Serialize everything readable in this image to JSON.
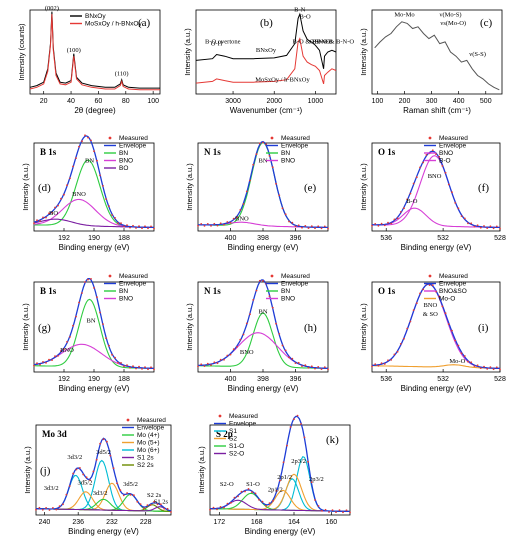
{
  "chart_data": [
    {
      "panel_label": "(a)",
      "type": "line",
      "xlabel": "2θ (degree)",
      "ylabel": "Intensity (counts)",
      "xticks": [
        "20",
        "40",
        "60",
        "80",
        "100"
      ],
      "xlim": [
        10,
        105
      ],
      "ylim": [
        0,
        1
      ],
      "legend": [
        "BNxOy",
        "MoSxOy / h-BNxOy"
      ],
      "legend_position": "top-right",
      "peak_labels": [
        {
          "text": "(002)",
          "x": 26,
          "y": 1.0
        },
        {
          "text": "(100)",
          "x": 42,
          "y": 0.5
        },
        {
          "text": "(110)",
          "x": 77,
          "y": 0.22
        }
      ],
      "series": [
        {
          "name": "BNxOy",
          "color": "#000000",
          "x": [
            10,
            15,
            20,
            23,
            25,
            26,
            27,
            29,
            32,
            36,
            40,
            42,
            44,
            48,
            55,
            65,
            72,
            76,
            77,
            78,
            82,
            90,
            100,
            105
          ],
          "y": [
            0.08,
            0.1,
            0.14,
            0.3,
            0.6,
            0.98,
            0.55,
            0.25,
            0.14,
            0.13,
            0.16,
            0.48,
            0.2,
            0.13,
            0.1,
            0.08,
            0.08,
            0.12,
            0.17,
            0.11,
            0.08,
            0.07,
            0.07,
            0.07
          ]
        },
        {
          "name": "MoSxOy / h-BNxOy",
          "color": "#e53935",
          "x": [
            10,
            15,
            20,
            23,
            25,
            26,
            27,
            29,
            32,
            36,
            40,
            42,
            44,
            48,
            55,
            65,
            72,
            76,
            77,
            78,
            82,
            90,
            100,
            105
          ],
          "y": [
            0.06,
            0.08,
            0.12,
            0.27,
            0.58,
            0.95,
            0.52,
            0.22,
            0.12,
            0.11,
            0.14,
            0.45,
            0.18,
            0.11,
            0.08,
            0.06,
            0.06,
            0.1,
            0.15,
            0.09,
            0.06,
            0.05,
            0.05,
            0.05
          ]
        }
      ]
    },
    {
      "panel_label": "(b)",
      "type": "line",
      "xlabel": "Wavenumber (cm⁻¹)",
      "ylabel": "Intensity (a.u.)",
      "xticks": [
        "3000",
        "2000",
        "1000"
      ],
      "xlim": [
        3900,
        500
      ],
      "ylim": [
        0,
        1
      ],
      "annotations": [
        {
          "text": "O-H",
          "x": 3400,
          "y": 0.58
        },
        {
          "text": "B-O overtone",
          "x": 3250,
          "y": 0.6
        },
        {
          "text": "BNxOy",
          "x": 2200,
          "y": 0.5
        },
        {
          "text": "MoSxOy / h-BNxOy",
          "x": 1800,
          "y": 0.15
        },
        {
          "text": "B-N",
          "x": 1380,
          "y": 0.98
        },
        {
          "text": "B-O",
          "x": 1250,
          "y": 0.9
        },
        {
          "text": "B-O & B-N-O",
          "x": 1100,
          "y": 0.6
        },
        {
          "text": "B-N-B",
          "x": 800,
          "y": 0.6
        },
        {
          "text": "O-B-O & B-N-O",
          "x": 600,
          "y": 0.6
        }
      ],
      "series": [
        {
          "name": "BNxOy",
          "color": "#000000",
          "x": [
            3900,
            3500,
            3400,
            3300,
            3200,
            3000,
            2500,
            2000,
            1700,
            1500,
            1420,
            1380,
            1300,
            1200,
            1100,
            1000,
            900,
            800,
            780,
            700,
            600,
            500
          ],
          "y": [
            0.4,
            0.42,
            0.47,
            0.46,
            0.45,
            0.42,
            0.42,
            0.43,
            0.46,
            0.6,
            0.9,
            0.95,
            0.75,
            0.65,
            0.62,
            0.58,
            0.52,
            0.3,
            0.45,
            0.5,
            0.52,
            0.5
          ]
        },
        {
          "name": "MoSxOy / h-BNxOy",
          "color": "#e53935",
          "x": [
            3900,
            3500,
            3400,
            3300,
            3200,
            3000,
            2500,
            2000,
            1700,
            1500,
            1420,
            1380,
            1300,
            1200,
            1100,
            1000,
            900,
            800,
            780,
            700,
            600,
            500
          ],
          "y": [
            0.13,
            0.15,
            0.18,
            0.17,
            0.16,
            0.14,
            0.14,
            0.15,
            0.17,
            0.3,
            0.62,
            0.66,
            0.45,
            0.38,
            0.35,
            0.33,
            0.28,
            0.12,
            0.22,
            0.26,
            0.3,
            0.28
          ]
        }
      ]
    },
    {
      "panel_label": "(c)",
      "type": "line",
      "xlabel": "Raman shift (cm⁻¹)",
      "ylabel": "Intensity (a.u.)",
      "xticks": [
        "100",
        "200",
        "300",
        "400",
        "500"
      ],
      "xlim": [
        80,
        560
      ],
      "ylim": [
        0,
        1
      ],
      "annotations": [
        {
          "text": "Mo-Mo",
          "x": 200,
          "y": 0.92
        },
        {
          "text": "ν(Mo-S)",
          "x": 370,
          "y": 0.92
        },
        {
          "text": "νs(Mo-O)",
          "x": 380,
          "y": 0.82
        },
        {
          "text": "ν(S-S)",
          "x": 470,
          "y": 0.45
        }
      ],
      "series": [
        {
          "name": "Raman",
          "color": "#555555",
          "x": [
            90,
            110,
            130,
            150,
            170,
            190,
            210,
            230,
            250,
            270,
            290,
            310,
            330,
            350,
            370,
            390,
            410,
            430,
            450,
            470,
            490,
            510,
            530,
            550
          ],
          "y": [
            0.55,
            0.62,
            0.68,
            0.72,
            0.8,
            0.86,
            0.84,
            0.78,
            0.8,
            0.72,
            0.66,
            0.7,
            0.6,
            0.62,
            0.5,
            0.45,
            0.38,
            0.4,
            0.3,
            0.22,
            0.18,
            0.12,
            0.08,
            0.05
          ]
        }
      ]
    },
    {
      "panel_label": "(d)",
      "title": "B 1s",
      "type": "line",
      "xlabel": "Binding energy (eV)",
      "ylabel": "Intensity (a.u.)",
      "xticks": [
        "192",
        "190",
        "188"
      ],
      "xlim": [
        194,
        186
      ],
      "ylim": [
        0,
        1
      ],
      "legend": [
        "Measured",
        "Envelope",
        "BN",
        "BNO",
        "BO"
      ],
      "components": [
        {
          "name": "BN",
          "center": 190.4,
          "height": 0.75,
          "width": 0.8
        },
        {
          "name": "BNO",
          "center": 191.0,
          "height": 0.3,
          "width": 1.1
        },
        {
          "name": "BO",
          "center": 192.5,
          "height": 0.07,
          "width": 1.0
        }
      ],
      "peak_labels": [
        {
          "text": "BN",
          "x": 190.3,
          "y": 0.78
        },
        {
          "text": "BNO",
          "x": 191.0,
          "y": 0.4
        },
        {
          "text": "BO",
          "x": 192.7,
          "y": 0.18
        }
      ]
    },
    {
      "panel_label": "(e)",
      "title": "N 1s",
      "type": "line",
      "xlabel": "Binding energy (eV)",
      "ylabel": "Intensity (a.u.)",
      "xticks": [
        "400",
        "398",
        "396"
      ],
      "xlim": [
        402,
        394
      ],
      "ylim": [
        0,
        1
      ],
      "legend": [
        "Measured",
        "Envelope",
        "BN",
        "BNO"
      ],
      "components": [
        {
          "name": "BN",
          "center": 398.0,
          "height": 0.95,
          "width": 0.7
        },
        {
          "name": "BNO",
          "center": 399.3,
          "height": 0.04,
          "width": 0.8
        }
      ],
      "peak_labels": [
        {
          "text": "BN",
          "x": 398.0,
          "y": 0.78
        },
        {
          "text": "BNO",
          "x": 399.3,
          "y": 0.12
        }
      ]
    },
    {
      "panel_label": "(f)",
      "title": "O 1s",
      "type": "line",
      "xlabel": "Binding energy (eV)",
      "ylabel": "Intensity (a.u.)",
      "xticks": [
        "536",
        "532",
        "528"
      ],
      "xlim": [
        537,
        528
      ],
      "ylim": [
        0,
        1
      ],
      "legend": [
        "Measured",
        "Envelope",
        "BNO",
        "B-O"
      ],
      "components": [
        {
          "name": "BNO",
          "center": 532.6,
          "height": 0.8,
          "width": 1.0
        },
        {
          "name": "B-O",
          "center": 534.0,
          "height": 0.2,
          "width": 0.8
        }
      ],
      "peak_labels": [
        {
          "text": "BNO",
          "x": 532.6,
          "y": 0.6
        },
        {
          "text": "B-O",
          "x": 534.2,
          "y": 0.32
        }
      ]
    },
    {
      "panel_label": "(g)",
      "title": "B 1s",
      "type": "line",
      "xlabel": "Binding energy (eV)",
      "ylabel": "Intensity (a.u.)",
      "xticks": [
        "192",
        "190",
        "188"
      ],
      "xlim": [
        194,
        186
      ],
      "ylim": [
        0,
        1
      ],
      "legend": [
        "Measured",
        "Envelope",
        "BN",
        "BNO"
      ],
      "components": [
        {
          "name": "BN",
          "center": 190.3,
          "height": 0.75,
          "width": 0.7
        },
        {
          "name": "BNO",
          "center": 190.8,
          "height": 0.25,
          "width": 1.3
        }
      ],
      "peak_labels": [
        {
          "text": "BN",
          "x": 190.2,
          "y": 0.55
        },
        {
          "text": "BNO",
          "x": 191.8,
          "y": 0.22
        }
      ]
    },
    {
      "panel_label": "(h)",
      "title": "N 1s",
      "type": "line",
      "xlabel": "Binding energy (eV)",
      "ylabel": "Intensity (a.u.)",
      "xticks": [
        "400",
        "398",
        "396"
      ],
      "xlim": [
        402,
        394
      ],
      "ylim": [
        0,
        1
      ],
      "legend": [
        "Measured",
        "Envelope",
        "BN",
        "BNO"
      ],
      "components": [
        {
          "name": "BN",
          "center": 398.0,
          "height": 0.6,
          "width": 0.6
        },
        {
          "name": "BNO",
          "center": 398.3,
          "height": 0.38,
          "width": 1.2
        }
      ],
      "peak_labels": [
        {
          "text": "BN",
          "x": 398.0,
          "y": 0.65
        },
        {
          "text": "BNO",
          "x": 399.0,
          "y": 0.2
        }
      ]
    },
    {
      "panel_label": "(i)",
      "title": "O 1s",
      "type": "line",
      "xlabel": "Binding energy (eV)",
      "ylabel": "Intensity (a.u.)",
      "xticks": [
        "536",
        "532",
        "528"
      ],
      "xlim": [
        537,
        528
      ],
      "ylim": [
        0,
        1
      ],
      "legend": [
        "Measured",
        "Envelope",
        "BNO&SO",
        "Mo-O"
      ],
      "components": [
        {
          "name": "BNO&SO",
          "center": 533.0,
          "height": 0.92,
          "width": 1.2
        },
        {
          "name": "Mo-O",
          "center": 531.2,
          "height": 0.03,
          "width": 0.7
        }
      ],
      "peak_labels": [
        {
          "text": "BNO",
          "x": 532.9,
          "y": 0.72
        },
        {
          "text": "& SO",
          "x": 532.9,
          "y": 0.62
        },
        {
          "text": "Mo-O",
          "x": 531.0,
          "y": 0.1
        }
      ]
    },
    {
      "panel_label": "(j)",
      "title": "Mo 3d",
      "type": "line",
      "xlabel": "Binding energy (eV)",
      "ylabel": "Intensity (a.u.)",
      "xticks": [
        "240",
        "236",
        "232",
        "228"
      ],
      "xlim": [
        241,
        225
      ],
      "ylim": [
        0,
        1
      ],
      "legend": [
        "Measured",
        "Envelope",
        "Mo (4+)",
        "Mo (5+)",
        "Mo (6+)",
        "S1 2s",
        "S2 2s"
      ],
      "components": [
        {
          "name": "Mo (6+)",
          "center": 233.2,
          "height": 0.55,
          "width": 0.8
        },
        {
          "name": "Mo (6+)",
          "center": 236.3,
          "height": 0.38,
          "width": 0.8
        },
        {
          "name": "Mo (5+)",
          "center": 232.0,
          "height": 0.3,
          "width": 0.8
        },
        {
          "name": "Mo (5+)",
          "center": 235.1,
          "height": 0.2,
          "width": 0.8
        },
        {
          "name": "Mo (4+)",
          "center": 229.8,
          "height": 0.18,
          "width": 0.8
        },
        {
          "name": "Mo (4+)",
          "center": 233.0,
          "height": 0.12,
          "width": 0.8
        },
        {
          "name": "S2 2s",
          "center": 227.2,
          "height": 0.07,
          "width": 0.6
        },
        {
          "name": "S1 2s",
          "center": 226.3,
          "height": 0.05,
          "width": 0.6
        }
      ],
      "peak_labels": [
        {
          "text": "3d3/2",
          "x": 236.4,
          "y": 0.62
        },
        {
          "text": "3d5/2",
          "x": 233.0,
          "y": 0.68
        },
        {
          "text": "3d5/2",
          "x": 235.2,
          "y": 0.34
        },
        {
          "text": "3d3/2",
          "x": 239.2,
          "y": 0.28
        },
        {
          "text": "3d3/2",
          "x": 233.4,
          "y": 0.22
        },
        {
          "text": "3d5/2",
          "x": 229.8,
          "y": 0.32
        },
        {
          "text": "S2 2s",
          "x": 227.0,
          "y": 0.2
        },
        {
          "text": "S1 2s",
          "x": 226.2,
          "y": 0.13
        }
      ]
    },
    {
      "panel_label": "(k)",
      "title": "S 2p",
      "type": "line",
      "xlabel": "Binding energy (eV)",
      "ylabel": "Intensity (a.u.)",
      "xticks": [
        "172",
        "168",
        "164",
        "160"
      ],
      "xlim": [
        173,
        158
      ],
      "ylim": [
        0,
        1
      ],
      "legend": [
        "Measured",
        "Envelope",
        "S1",
        "S2",
        "S1-O",
        "S2-O"
      ],
      "components": [
        {
          "name": "S1",
          "center": 163.0,
          "height": 0.6,
          "width": 0.7
        },
        {
          "name": "S1",
          "center": 164.2,
          "height": 0.35,
          "width": 0.7
        },
        {
          "name": "S2",
          "center": 164.0,
          "height": 0.4,
          "width": 0.8
        },
        {
          "name": "S2",
          "center": 165.2,
          "height": 0.22,
          "width": 0.8
        },
        {
          "name": "S1-O",
          "center": 168.6,
          "height": 0.18,
          "width": 0.9
        },
        {
          "name": "S2-O",
          "center": 170.0,
          "height": 0.1,
          "width": 0.9
        }
      ],
      "peak_labels": [
        {
          "text": "2p3/2",
          "x": 163.5,
          "y": 0.58
        },
        {
          "text": "2p3/2",
          "x": 161.6,
          "y": 0.38
        },
        {
          "text": "2p1/2",
          "x": 165.0,
          "y": 0.4
        },
        {
          "text": "2p1/2",
          "x": 166.0,
          "y": 0.26
        },
        {
          "text": "S1-O",
          "x": 168.4,
          "y": 0.32
        },
        {
          "text": "S2-O",
          "x": 171.2,
          "y": 0.32
        }
      ]
    }
  ],
  "colors": {
    "measured": "#e53935",
    "envelope": "#1e3cd6",
    "green": "#2ecc40",
    "pink": "#d63fd6",
    "orange": "#f0a030",
    "cyan": "#00bcd4",
    "purple": "#7b1fa2",
    "olive": "#6d8c00"
  }
}
